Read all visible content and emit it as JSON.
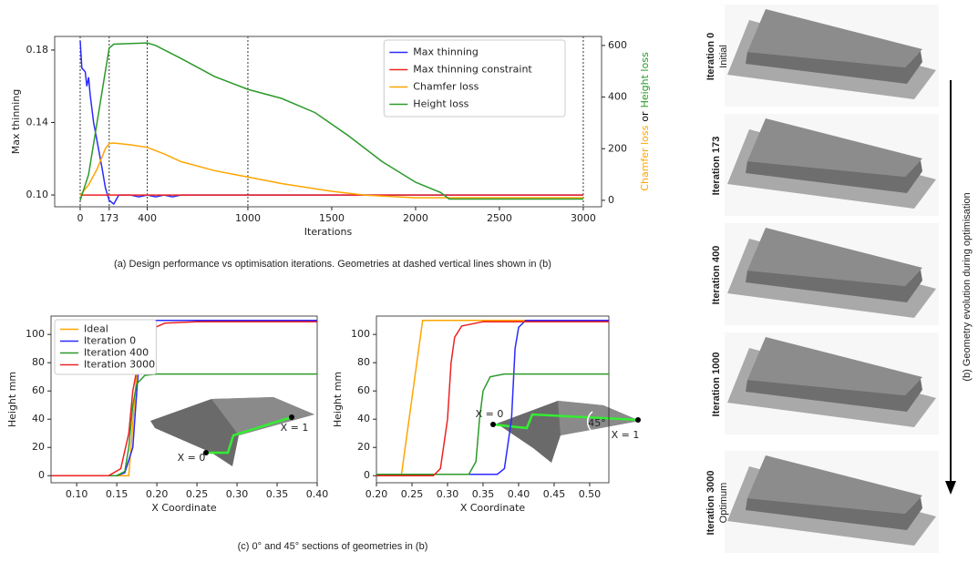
{
  "chart_data": [
    {
      "type": "line",
      "xlabel": "Iterations",
      "ylabel": "Max thinning",
      "ylabel_color": "#2a2aff",
      "y2label": [
        "Chamfer loss",
        "or",
        "Height loss"
      ],
      "y2label_colors": [
        "#ffa500",
        "#000000",
        "#2a9a2a"
      ],
      "xlim": [
        -152,
        3109
      ],
      "xticks": [
        0,
        173,
        400,
        1000,
        1500,
        2000,
        2500,
        3000
      ],
      "ylim": [
        0.0935,
        0.1875
      ],
      "yticks": [
        {
          "value": 0.1,
          "label": "0.10"
        },
        0.14,
        0.18
      ],
      "y2lim": [
        -25,
        635
      ],
      "y2ticks": [
        0,
        200,
        400,
        600
      ],
      "vlines": [
        0,
        173,
        400,
        1000,
        3000
      ],
      "legend": "upper right",
      "series": [
        {
          "name": "Max thinning",
          "color": "#2a2aff",
          "x": [
            0,
            10,
            30,
            40,
            50,
            60,
            80,
            100,
            130,
            150,
            173,
            200,
            230,
            300,
            350,
            400,
            450,
            500,
            550,
            600,
            700,
            1000,
            3000
          ],
          "values": [
            0.185,
            0.17,
            0.168,
            0.16,
            0.165,
            0.155,
            0.14,
            0.13,
            0.115,
            0.104,
            0.097,
            0.095,
            0.1,
            0.1,
            0.099,
            0.1,
            0.099,
            0.1,
            0.099,
            0.1,
            0.1,
            0.1,
            0.1
          ]
        },
        {
          "name": "Max thinning constraint",
          "color": "#ee2222",
          "x": [
            0,
            3000
          ],
          "values": [
            0.1,
            0.1
          ]
        },
        {
          "name": "Chamfer loss",
          "color": "#ffa500",
          "axis": "y2",
          "x": [
            0,
            50,
            100,
            150,
            173,
            200,
            300,
            400,
            500,
            600,
            800,
            1000,
            1200,
            1400,
            1500,
            1700,
            2000,
            2500,
            3000
          ],
          "values": [
            20,
            60,
            120,
            200,
            220,
            222,
            215,
            205,
            180,
            150,
            115,
            90,
            65,
            45,
            35,
            20,
            10,
            10,
            10
          ]
        },
        {
          "name": "Height loss",
          "color": "#2a9a2a",
          "axis": "y2",
          "x": [
            0,
            50,
            100,
            150,
            173,
            200,
            400,
            450,
            600,
            800,
            1000,
            1200,
            1400,
            1600,
            1800,
            2000,
            2150,
            2200,
            2500,
            3000
          ],
          "values": [
            0,
            100,
            300,
            500,
            590,
            605,
            610,
            600,
            550,
            480,
            430,
            395,
            340,
            250,
            150,
            70,
            30,
            5,
            5,
            5
          ]
        }
      ]
    },
    {
      "type": "line",
      "xlabel": "X Coordinate",
      "ylabel": "Height mm",
      "xlim": [
        0.068,
        0.4
      ],
      "xticks": [
        {
          "value": 0.1,
          "label": "0.10"
        },
        0.15,
        {
          "value": 0.2,
          "label": "0.20"
        },
        0.25,
        {
          "value": 0.3,
          "label": "0.30"
        },
        0.35,
        {
          "value": 0.4,
          "label": "0.40"
        }
      ],
      "ylim": [
        -5,
        113
      ],
      "yticks": [
        0,
        20,
        40,
        60,
        80,
        100
      ],
      "legend": "upper left",
      "annotations": [
        "X = 0",
        "X = 1"
      ],
      "series": [
        {
          "name": "Ideal",
          "color": "#ffa500",
          "x": [
            0.068,
            0.165,
            0.18,
            0.4
          ],
          "values": [
            0,
            0,
            110,
            110
          ]
        },
        {
          "name": "Iteration 0",
          "color": "#2a2aff",
          "x": [
            0.068,
            0.15,
            0.16,
            0.17,
            0.175,
            0.18,
            0.19,
            0.2,
            0.4
          ],
          "values": [
            0,
            0,
            2,
            20,
            60,
            95,
            108,
            110,
            110
          ]
        },
        {
          "name": "Iteration 400",
          "color": "#2a9a2a",
          "x": [
            0.068,
            0.15,
            0.16,
            0.165,
            0.17,
            0.175,
            0.185,
            0.2,
            0.4
          ],
          "values": [
            0,
            0,
            3,
            20,
            50,
            65,
            71,
            72,
            72
          ]
        },
        {
          "name": "Iteration 3000",
          "color": "#ee2222",
          "x": [
            0.068,
            0.14,
            0.155,
            0.165,
            0.17,
            0.18,
            0.19,
            0.21,
            0.25,
            0.4
          ],
          "values": [
            0,
            0,
            5,
            30,
            60,
            90,
            103,
            108,
            109,
            109
          ]
        }
      ]
    },
    {
      "type": "line",
      "ylabel": "Height mm",
      "xlabel": "X Coordinate",
      "xlim": [
        0.2,
        0.527
      ],
      "xticks": [
        {
          "value": 0.2,
          "label": "0.20"
        },
        0.25,
        {
          "value": 0.3,
          "label": "0.30"
        },
        0.35,
        {
          "value": 0.4,
          "label": "0.40"
        },
        0.45,
        {
          "value": 0.5,
          "label": "0.50"
        }
      ],
      "ylim": [
        -5,
        113
      ],
      "yticks": [
        0,
        20,
        40,
        60,
        80,
        100
      ],
      "annotations": [
        "X = 0",
        "X = 1",
        "45°"
      ],
      "series": [
        {
          "color": "#ffa500",
          "x": [
            0.2,
            0.235,
            0.265,
            0.527
          ],
          "values": [
            0,
            0,
            110,
            110
          ]
        },
        {
          "color": "#2a2aff",
          "x": [
            0.2,
            0.37,
            0.38,
            0.39,
            0.395,
            0.4,
            0.41,
            0.527
          ],
          "values": [
            1,
            1,
            5,
            40,
            90,
            105,
            110,
            110
          ]
        },
        {
          "color": "#2a9a2a",
          "x": [
            0.2,
            0.33,
            0.34,
            0.345,
            0.35,
            0.36,
            0.38,
            0.527
          ],
          "values": [
            1,
            1,
            10,
            40,
            60,
            70,
            72,
            72
          ]
        },
        {
          "color": "#ee2222",
          "x": [
            0.2,
            0.28,
            0.29,
            0.3,
            0.305,
            0.31,
            0.32,
            0.35,
            0.527
          ],
          "values": [
            0,
            0,
            5,
            40,
            80,
            98,
            106,
            109,
            109
          ]
        }
      ]
    }
  ],
  "captions": [
    "(a) Design performance vs optimisation iterations. Geometries at dashed vertical lines shown in (b)",
    "(c) 0° and 45° sections of geometries in (b)"
  ],
  "geometry": {
    "items": [
      {
        "label": "Iteration 0",
        "sublabel": "Initial"
      },
      {
        "label": "Iteration 173"
      },
      {
        "label": "Iteration 400"
      },
      {
        "label": "Iteration 1000"
      },
      {
        "label": "Iteration 3000",
        "sublabel": "Optimum"
      }
    ],
    "arrow_label": "(b) Geometry evolution during optimisation"
  }
}
